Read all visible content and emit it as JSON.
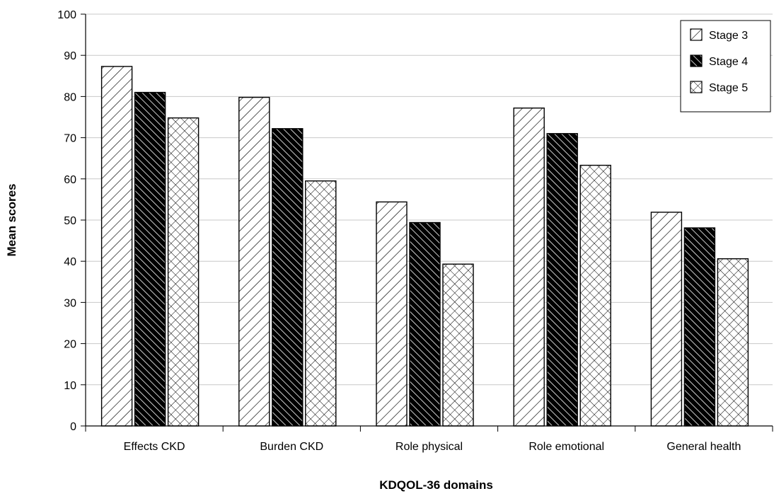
{
  "chart_data": {
    "type": "bar",
    "title": "",
    "xlabel": "KDQOL-36 domains",
    "ylabel": "Mean scores",
    "categories": [
      "Effects CKD",
      "Burden CKD",
      "Role physical",
      "Role emotional",
      "General health"
    ],
    "series": [
      {
        "name": "Stage 3",
        "values": [
          87.3,
          79.8,
          54.4,
          77.2,
          51.9
        ],
        "pattern": "diag-up-sparse"
      },
      {
        "name": "Stage 4",
        "values": [
          81.0,
          72.2,
          49.4,
          71.0,
          48.1
        ],
        "pattern": "diag-down-dense"
      },
      {
        "name": "Stage 5",
        "values": [
          74.8,
          59.5,
          39.3,
          63.3,
          40.6
        ],
        "pattern": "crosshatch"
      }
    ],
    "ylim": [
      0,
      100
    ],
    "yticks": [
      0,
      10,
      20,
      30,
      40,
      50,
      60,
      70,
      80,
      90,
      100
    ],
    "grid": true,
    "legend": "top-right",
    "colors": {
      "stroke": "#000000",
      "grid": "#c8c8c8",
      "fill_dark": "#000000",
      "fill_light": "#ffffff"
    }
  }
}
